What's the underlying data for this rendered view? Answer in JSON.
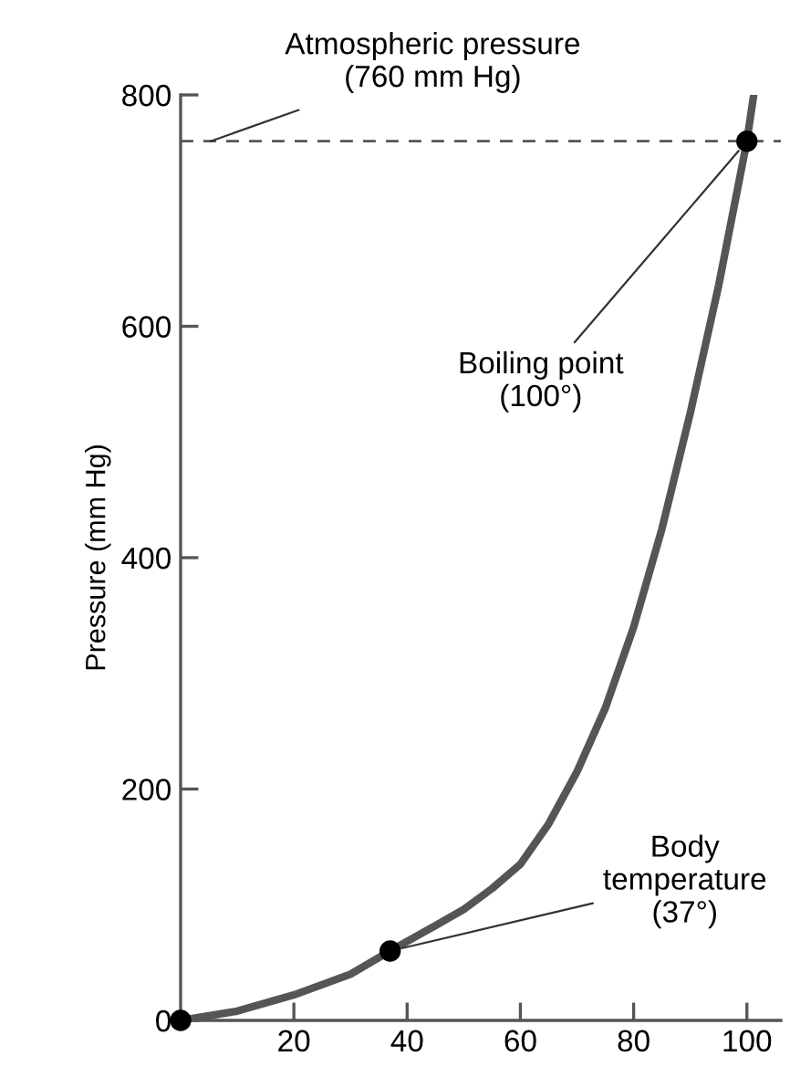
{
  "chart_data": {
    "type": "line",
    "ylabel": "Pressure (mm Hg)",
    "xlim": [
      0,
      106
    ],
    "ylim": [
      0,
      800
    ],
    "xticks": [
      20,
      40,
      60,
      80,
      100
    ],
    "yticks": [
      0,
      200,
      400,
      600,
      800
    ],
    "grid": false,
    "legend": false,
    "series": [
      {
        "color": "#555555",
        "marker": "none",
        "line_style": "solid",
        "x": [
          0,
          10,
          20,
          30,
          37,
          45,
          50,
          55,
          60,
          65,
          70,
          75,
          80,
          85,
          90,
          95,
          100,
          101.2
        ],
        "values": [
          0,
          8,
          22,
          40,
          60,
          82,
          96,
          114,
          135,
          170,
          215,
          270,
          340,
          425,
          525,
          635,
          760,
          800
        ]
      },
      {
        "type": "scatter",
        "color": "#000000",
        "marker": "circle",
        "x": [
          0,
          37,
          100
        ],
        "values": [
          0,
          60,
          760
        ]
      }
    ],
    "ref_lines": [
      {
        "axis": "y",
        "value": 760,
        "label": "Atmospheric pressure\n(760 mm Hg)",
        "color": "#555555",
        "line_style": "dashed"
      }
    ],
    "annotations": [
      {
        "text": "Boiling point\n(100°)",
        "x": 100,
        "y": 760
      },
      {
        "text": "Body\ntemperature\n(37°)",
        "x": 37,
        "y": 60
      }
    ]
  }
}
